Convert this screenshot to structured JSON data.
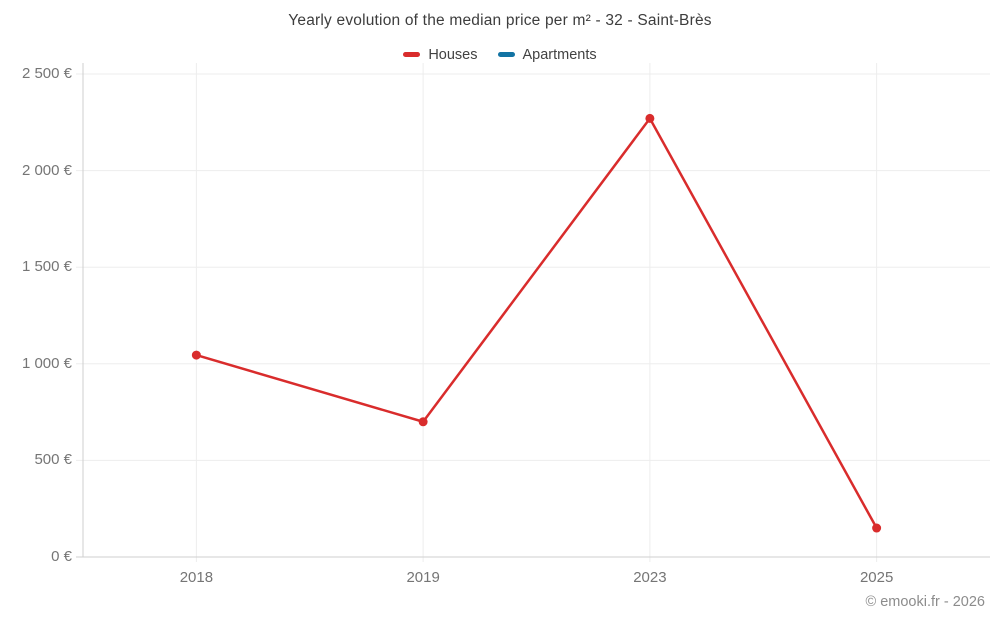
{
  "chart": {
    "title": "Yearly evolution of the median price per m² - 32 - Saint-Brès"
  },
  "chart_data": {
    "type": "line",
    "categories": [
      "2018",
      "2019",
      "2023",
      "2025"
    ],
    "series": [
      {
        "name": "Houses",
        "color": "#d92c2c",
        "values": [
          1045,
          700,
          2270,
          150
        ]
      },
      {
        "name": "Apartments",
        "color": "#1273a3",
        "values": []
      }
    ],
    "title": "Yearly evolution of the median price per m² - 32 - Saint-Brès",
    "xlabel": "",
    "ylabel": "",
    "ylim": [
      0,
      2500
    ],
    "y_ticks": [
      0,
      500,
      1000,
      1500,
      2000,
      2500
    ],
    "y_tick_labels": [
      "0 €",
      "500 €",
      "1 000 €",
      "1 500 €",
      "2 000 €",
      "2 500 €"
    ],
    "grid": true,
    "legend_position": "top",
    "point_radius": 4.5,
    "line_width": 2.5,
    "gridline_color": "#ededed",
    "axis_color": "#cfcfcf",
    "tick_label_color": "#757575"
  },
  "footer": {
    "copyright": "© emooki.fr - 2026"
  }
}
